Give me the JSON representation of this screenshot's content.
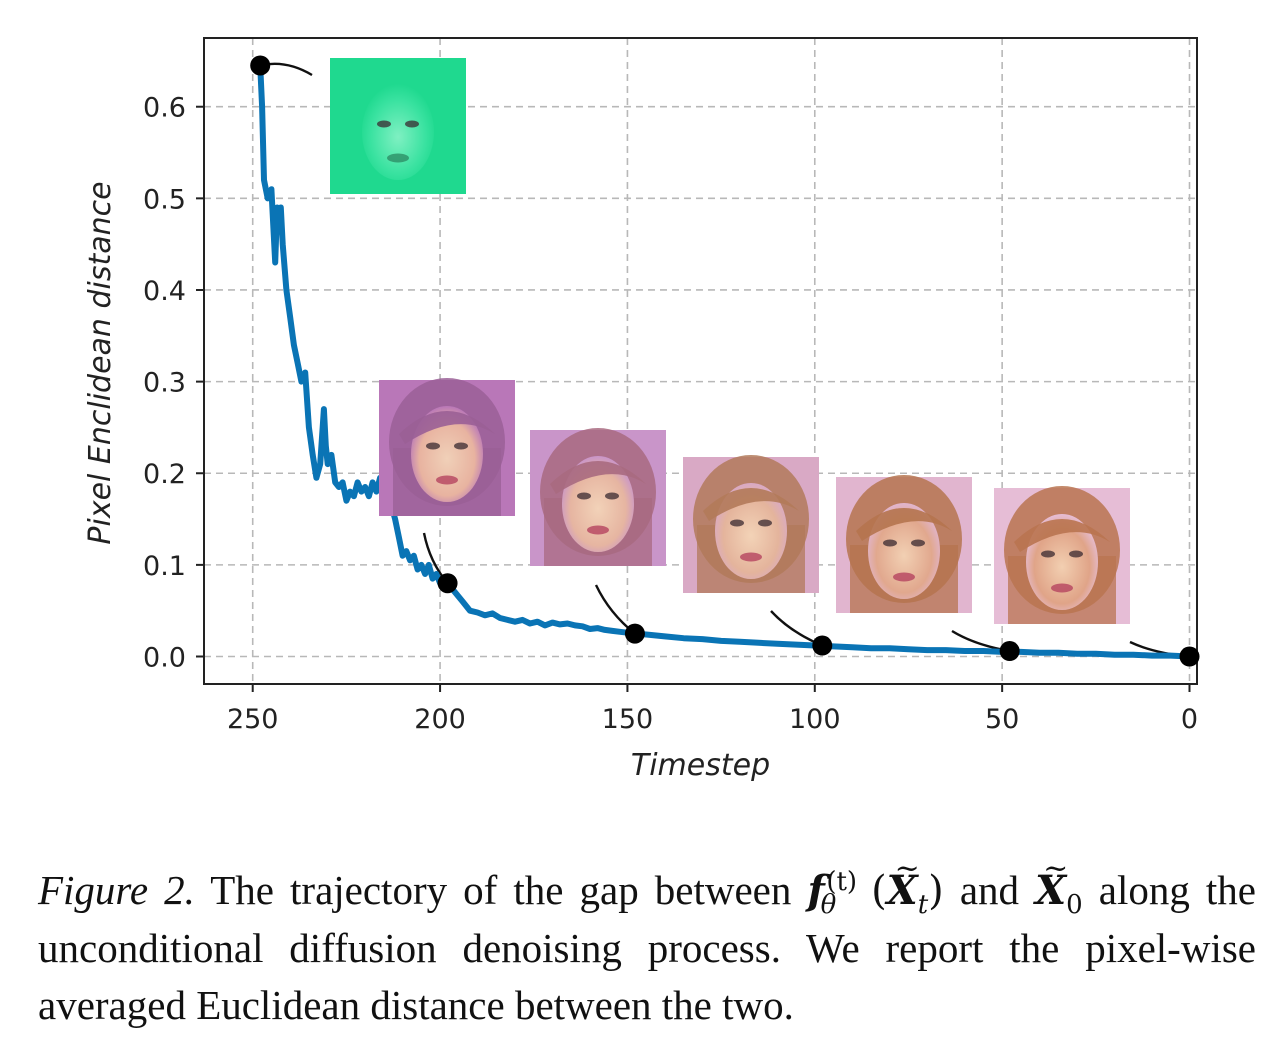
{
  "chart_data": {
    "type": "line",
    "xlabel": "Timestep",
    "ylabel": "Pixel Enclidean distance",
    "xlim": [
      -2,
      263
    ],
    "ylim": [
      -0.03,
      0.675
    ],
    "x_inverted": true,
    "grid": true,
    "xticks": [
      250,
      200,
      150,
      100,
      50,
      0
    ],
    "yticks": [
      0.0,
      0.1,
      0.2,
      0.3,
      0.4,
      0.5,
      0.6
    ],
    "ytick_labels": [
      "0.0",
      "0.1",
      "0.2",
      "0.3",
      "0.4",
      "0.5",
      "0.6"
    ],
    "line_color": "#0a74b5",
    "series": [
      {
        "x": [
          248,
          247.5,
          247,
          246,
          245,
          244,
          243.5,
          243,
          242.5,
          242,
          241,
          240,
          239,
          238,
          237,
          236,
          235,
          234,
          233,
          232,
          231,
          230.5,
          230,
          229,
          228,
          227,
          226,
          225,
          224,
          223,
          222,
          221,
          220,
          219,
          218,
          217,
          216,
          215,
          214,
          213,
          212,
          211,
          210,
          209,
          208,
          207,
          206,
          205,
          204,
          203,
          202,
          201,
          200,
          199,
          198,
          196,
          194,
          192,
          190,
          188,
          186,
          184,
          182,
          180,
          178,
          176,
          174,
          172,
          170,
          168,
          166,
          164,
          162,
          160,
          158,
          156,
          154,
          152,
          150,
          148,
          145,
          140,
          135,
          130,
          125,
          120,
          115,
          110,
          105,
          100,
          95,
          90,
          85,
          80,
          75,
          70,
          65,
          60,
          55,
          50,
          45,
          40,
          35,
          30,
          25,
          20,
          15,
          10,
          5,
          0
        ],
        "y": [
          0.645,
          0.6,
          0.52,
          0.5,
          0.51,
          0.43,
          0.49,
          0.47,
          0.49,
          0.45,
          0.4,
          0.37,
          0.34,
          0.32,
          0.3,
          0.31,
          0.25,
          0.22,
          0.195,
          0.21,
          0.27,
          0.23,
          0.21,
          0.22,
          0.19,
          0.185,
          0.19,
          0.17,
          0.18,
          0.175,
          0.19,
          0.18,
          0.185,
          0.175,
          0.19,
          0.18,
          0.195,
          0.18,
          0.17,
          0.165,
          0.15,
          0.13,
          0.11,
          0.115,
          0.105,
          0.11,
          0.095,
          0.1,
          0.09,
          0.1,
          0.085,
          0.09,
          0.08,
          0.085,
          0.08,
          0.07,
          0.06,
          0.05,
          0.048,
          0.045,
          0.047,
          0.042,
          0.04,
          0.038,
          0.04,
          0.036,
          0.038,
          0.034,
          0.037,
          0.035,
          0.036,
          0.034,
          0.033,
          0.03,
          0.031,
          0.029,
          0.028,
          0.027,
          0.026,
          0.025,
          0.024,
          0.022,
          0.02,
          0.019,
          0.017,
          0.016,
          0.015,
          0.014,
          0.013,
          0.012,
          0.011,
          0.01,
          0.009,
          0.009,
          0.008,
          0.007,
          0.007,
          0.006,
          0.006,
          0.005,
          0.005,
          0.004,
          0.004,
          0.003,
          0.003,
          0.002,
          0.002,
          0.001,
          0.001,
          0.0
        ]
      }
    ],
    "markers": [
      {
        "x": 248,
        "y": 0.645
      },
      {
        "x": 198,
        "y": 0.08
      },
      {
        "x": 148,
        "y": 0.025
      },
      {
        "x": 98,
        "y": 0.012
      },
      {
        "x": 48,
        "y": 0.006
      },
      {
        "x": 0,
        "y": 0.0
      }
    ]
  },
  "thumbnails": [
    {
      "name": "thumb-t250",
      "tone": "green",
      "colors": [
        "#1fd98f",
        "#39e2a0",
        "#7ff0c2",
        "#2ba976"
      ]
    },
    {
      "name": "thumb-t200",
      "tone": "pink",
      "colors": [
        "#b977b8",
        "#e8b3a0",
        "#f0d0b8",
        "#9a5f96"
      ]
    },
    {
      "name": "thumb-t150",
      "tone": "pink",
      "colors": [
        "#c995c9",
        "#e6b5a1",
        "#f2d2b8",
        "#a86a80"
      ]
    },
    {
      "name": "thumb-t100",
      "tone": "natural",
      "colors": [
        "#d9a9c5",
        "#e4b49c",
        "#f3d3b7",
        "#b27a5a"
      ]
    },
    {
      "name": "thumb-t50",
      "tone": "natural",
      "colors": [
        "#e1b5cf",
        "#e1a88e",
        "#f2d0b3",
        "#b5744f"
      ]
    },
    {
      "name": "thumb-t0",
      "tone": "natural",
      "colors": [
        "#e6bdd6",
        "#e0a488",
        "#f2cfb1",
        "#b97450"
      ]
    }
  ],
  "caption": {
    "label": "Figure 2.",
    "text_1": "The trajectory of the gap between",
    "f": "f",
    "theta": "θ",
    "sup_t": "(t)",
    "X": "X",
    "sub_t": "t",
    "and": "and",
    "sub_0": "0",
    "text_2": "along the unconditional diffusion denoising process. We report the pixel-wise averaged Euclidean distance between the two."
  }
}
